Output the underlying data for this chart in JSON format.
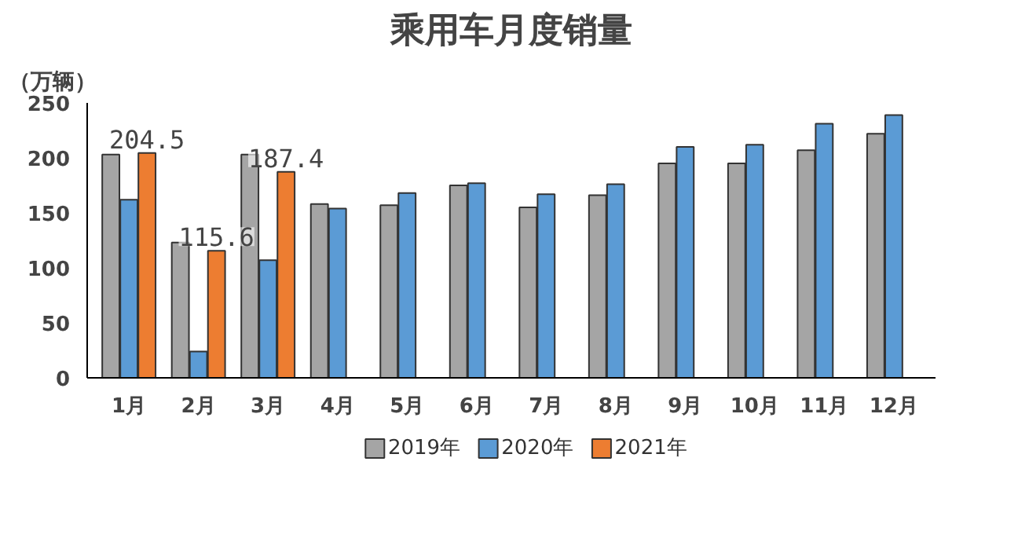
{
  "chart_data": {
    "type": "bar",
    "title": "乘用车月度销量",
    "ylabel": "（万辆）",
    "categories": [
      "1月",
      "2月",
      "3月",
      "4月",
      "5月",
      "6月",
      "7月",
      "8月",
      "9月",
      "10月",
      "11月",
      "12月"
    ],
    "series": [
      {
        "name": "2019年",
        "color": "#a5a5a5",
        "values": [
          203,
          123,
          203,
          158,
          157,
          175,
          155,
          166,
          195,
          195,
          207,
          222
        ]
      },
      {
        "name": "2020年",
        "color": "#5b9bd5",
        "values": [
          162,
          24,
          107,
          154,
          168,
          177,
          167,
          176,
          210,
          212,
          231,
          239
        ]
      },
      {
        "name": "2021年",
        "color": "#ed7d31",
        "values": [
          204.5,
          115.6,
          187.4,
          null,
          null,
          null,
          null,
          null,
          null,
          null,
          null,
          null
        ],
        "value_labels": [
          "204.5",
          "115.6",
          "187.4",
          null,
          null,
          null,
          null,
          null,
          null,
          null,
          null,
          null
        ]
      }
    ],
    "ylim": [
      0,
      250
    ],
    "yticks": [
      0,
      50,
      100,
      150,
      200,
      250
    ],
    "grid": false,
    "legend": "bottom"
  }
}
